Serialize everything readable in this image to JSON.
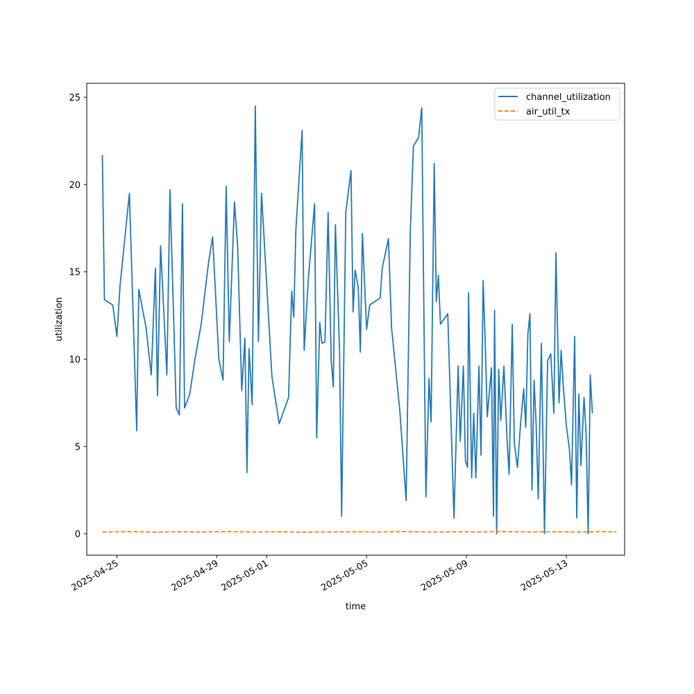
{
  "chart_data": {
    "type": "line",
    "xlabel": "time",
    "ylabel": "utilization",
    "x_type": "date",
    "xlim": [
      "2025-04-23T19:00",
      "2025-05-15T08:00"
    ],
    "ylim": [
      -1.23,
      25.8
    ],
    "grid": false,
    "legend_position": "top-right",
    "x_ticks": [
      "2025-04-25",
      "2025-04-29",
      "2025-05-01",
      "2025-05-05",
      "2025-05-09",
      "2025-05-13"
    ],
    "y_ticks": [
      0,
      5,
      10,
      15,
      20,
      25
    ],
    "series": [
      {
        "name": "channel_utilization",
        "color": "#1f77b4",
        "style": "solid",
        "points": [
          [
            "2025-04-24T10:00",
            21.7
          ],
          [
            "2025-04-24T12:00",
            13.4
          ],
          [
            "2025-04-24T20:00",
            13.1
          ],
          [
            "2025-04-25T00:00",
            11.3
          ],
          [
            "2025-04-25T03:00",
            14.2
          ],
          [
            "2025-04-25T12:00",
            19.5
          ],
          [
            "2025-04-25T19:00",
            5.9
          ],
          [
            "2025-04-25T21:00",
            14.0
          ],
          [
            "2025-04-26T04:00",
            11.8
          ],
          [
            "2025-04-26T09:00",
            9.1
          ],
          [
            "2025-04-26T13:00",
            15.2
          ],
          [
            "2025-04-26T15:00",
            7.9
          ],
          [
            "2025-04-26T18:00",
            16.5
          ],
          [
            "2025-04-27T00:00",
            9.1
          ],
          [
            "2025-04-27T03:00",
            19.7
          ],
          [
            "2025-04-27T09:00",
            7.2
          ],
          [
            "2025-04-27T12:00",
            6.8
          ],
          [
            "2025-04-27T15:00",
            18.9
          ],
          [
            "2025-04-27T17:00",
            7.2
          ],
          [
            "2025-04-27T22:00",
            8.0
          ],
          [
            "2025-04-28T03:00",
            10.0
          ],
          [
            "2025-04-28T09:00",
            12.0
          ],
          [
            "2025-04-28T16:00",
            15.5
          ],
          [
            "2025-04-28T20:00",
            17.0
          ],
          [
            "2025-04-29T02:00",
            10.0
          ],
          [
            "2025-04-29T06:00",
            8.8
          ],
          [
            "2025-04-29T09:00",
            19.9
          ],
          [
            "2025-04-29T12:00",
            11.0
          ],
          [
            "2025-04-29T17:00",
            19.0
          ],
          [
            "2025-04-29T20:00",
            16.5
          ],
          [
            "2025-04-30T00:00",
            8.2
          ],
          [
            "2025-04-30T03:00",
            11.2
          ],
          [
            "2025-04-30T05:00",
            3.5
          ],
          [
            "2025-04-30T07:00",
            10.6
          ],
          [
            "2025-04-30T10:00",
            7.4
          ],
          [
            "2025-04-30T13:00",
            24.5
          ],
          [
            "2025-04-30T16:00",
            11.0
          ],
          [
            "2025-04-30T19:00",
            19.5
          ],
          [
            "2025-05-01T05:00",
            9.0
          ],
          [
            "2025-05-01T12:00",
            6.3
          ],
          [
            "2025-05-01T21:00",
            7.8
          ],
          [
            "2025-05-02T00:00",
            13.9
          ],
          [
            "2025-05-02T02:00",
            12.4
          ],
          [
            "2025-05-02T04:00",
            17.4
          ],
          [
            "2025-05-02T10:00",
            23.1
          ],
          [
            "2025-05-02T12:00",
            10.5
          ],
          [
            "2025-05-02T16:00",
            14.6
          ],
          [
            "2025-05-02T22:00",
            18.9
          ],
          [
            "2025-05-03T00:00",
            5.5
          ],
          [
            "2025-05-03T03:00",
            12.1
          ],
          [
            "2025-05-03T05:00",
            10.9
          ],
          [
            "2025-05-03T08:00",
            11.0
          ],
          [
            "2025-05-03T11:00",
            18.4
          ],
          [
            "2025-05-03T14:00",
            9.9
          ],
          [
            "2025-05-03T16:00",
            8.4
          ],
          [
            "2025-05-03T18:00",
            17.7
          ],
          [
            "2025-05-03T22:00",
            10.5
          ],
          [
            "2025-05-04T00:00",
            1.0
          ],
          [
            "2025-05-04T04:00",
            18.4
          ],
          [
            "2025-05-04T09:00",
            20.8
          ],
          [
            "2025-05-04T11:00",
            12.7
          ],
          [
            "2025-05-04T13:00",
            15.1
          ],
          [
            "2025-05-04T16:00",
            14.1
          ],
          [
            "2025-05-04T18:00",
            10.4
          ],
          [
            "2025-05-04T20:00",
            17.2
          ],
          [
            "2025-05-05T00:00",
            11.7
          ],
          [
            "2025-05-05T03:00",
            13.1
          ],
          [
            "2025-05-05T13:00",
            13.5
          ],
          [
            "2025-05-05T15:00",
            15.2
          ],
          [
            "2025-05-05T21:00",
            16.9
          ],
          [
            "2025-05-06T00:00",
            11.8
          ],
          [
            "2025-05-06T08:00",
            7.0
          ],
          [
            "2025-05-06T14:00",
            1.9
          ],
          [
            "2025-05-06T18:00",
            17.3
          ],
          [
            "2025-05-06T21:00",
            22.2
          ],
          [
            "2025-05-07T02:00",
            22.7
          ],
          [
            "2025-05-07T05:00",
            24.4
          ],
          [
            "2025-05-07T08:00",
            7.4
          ],
          [
            "2025-05-07T09:00",
            2.1
          ],
          [
            "2025-05-07T12:00",
            8.9
          ],
          [
            "2025-05-07T14:00",
            6.4
          ],
          [
            "2025-05-07T17:00",
            21.2
          ],
          [
            "2025-05-07T19:00",
            13.3
          ],
          [
            "2025-05-07T21:00",
            14.8
          ],
          [
            "2025-05-07T23:00",
            12.0
          ],
          [
            "2025-05-08T06:00",
            12.6
          ],
          [
            "2025-05-08T12:00",
            0.9
          ],
          [
            "2025-05-08T16:00",
            9.6
          ],
          [
            "2025-05-08T18:00",
            5.3
          ],
          [
            "2025-05-08T21:00",
            9.6
          ],
          [
            "2025-05-08T23:00",
            4.2
          ],
          [
            "2025-05-09T01:00",
            3.8
          ],
          [
            "2025-05-09T02:00",
            13.8
          ],
          [
            "2025-05-09T05:00",
            3.2
          ],
          [
            "2025-05-09T07:00",
            6.9
          ],
          [
            "2025-05-09T09:00",
            3.2
          ],
          [
            "2025-05-09T12:00",
            9.6
          ],
          [
            "2025-05-09T14:00",
            4.5
          ],
          [
            "2025-05-09T16:00",
            14.5
          ],
          [
            "2025-05-09T18:00",
            11.0
          ],
          [
            "2025-05-09T20:00",
            6.7
          ],
          [
            "2025-05-10T00:00",
            9.5
          ],
          [
            "2025-05-10T02:00",
            1.0
          ],
          [
            "2025-05-10T03:00",
            12.8
          ],
          [
            "2025-05-10T05:00",
            0.0
          ],
          [
            "2025-05-10T07:00",
            9.4
          ],
          [
            "2025-05-10T09:00",
            6.5
          ],
          [
            "2025-05-10T12:00",
            9.6
          ],
          [
            "2025-05-10T15:00",
            5.4
          ],
          [
            "2025-05-10T17:00",
            3.4
          ],
          [
            "2025-05-10T20:00",
            12.0
          ],
          [
            "2025-05-10T22:00",
            5.2
          ],
          [
            "2025-05-11T01:00",
            3.8
          ],
          [
            "2025-05-11T04:00",
            6.3
          ],
          [
            "2025-05-11T07:00",
            8.3
          ],
          [
            "2025-05-11T09:00",
            6.1
          ],
          [
            "2025-05-11T11:00",
            11.4
          ],
          [
            "2025-05-11T13:00",
            12.6
          ],
          [
            "2025-05-11T15:00",
            2.5
          ],
          [
            "2025-05-11T17:00",
            8.8
          ],
          [
            "2025-05-11T19:00",
            6.2
          ],
          [
            "2025-05-11T21:00",
            2.0
          ],
          [
            "2025-05-12T00:00",
            10.9
          ],
          [
            "2025-05-12T03:00",
            0.0
          ],
          [
            "2025-05-12T06:00",
            9.9
          ],
          [
            "2025-05-12T09:00",
            10.3
          ],
          [
            "2025-05-12T12:00",
            6.9
          ],
          [
            "2025-05-12T14:00",
            16.1
          ],
          [
            "2025-05-12T17:00",
            7.5
          ],
          [
            "2025-05-12T19:00",
            10.5
          ],
          [
            "2025-05-12T21:00",
            8.5
          ],
          [
            "2025-05-13T00:00",
            6.2
          ],
          [
            "2025-05-13T03:00",
            4.8
          ],
          [
            "2025-05-13T05:00",
            2.8
          ],
          [
            "2025-05-13T08:00",
            11.3
          ],
          [
            "2025-05-13T10:00",
            0.9
          ],
          [
            "2025-05-13T12:00",
            8.0
          ],
          [
            "2025-05-13T14:00",
            3.9
          ],
          [
            "2025-05-13T17:00",
            7.8
          ],
          [
            "2025-05-13T19:00",
            5.7
          ],
          [
            "2025-05-13T21:00",
            0.0
          ],
          [
            "2025-05-13T23:00",
            9.1
          ],
          [
            "2025-05-14T01:00",
            6.9
          ]
        ]
      },
      {
        "name": "air_util_tx",
        "color": "#ff7f0e",
        "style": "dashed",
        "points": [
          [
            "2025-04-24T10:00",
            0.1
          ],
          [
            "2025-04-25T12:00",
            0.12
          ],
          [
            "2025-04-26T12:00",
            0.09
          ],
          [
            "2025-04-27T12:00",
            0.11
          ],
          [
            "2025-04-28T12:00",
            0.1
          ],
          [
            "2025-04-29T12:00",
            0.12
          ],
          [
            "2025-04-30T12:00",
            0.1
          ],
          [
            "2025-05-01T12:00",
            0.11
          ],
          [
            "2025-05-02T12:00",
            0.09
          ],
          [
            "2025-05-03T12:00",
            0.1
          ],
          [
            "2025-05-04T12:00",
            0.11
          ],
          [
            "2025-05-05T12:00",
            0.1
          ],
          [
            "2025-05-06T12:00",
            0.12
          ],
          [
            "2025-05-07T12:00",
            0.1
          ],
          [
            "2025-05-08T12:00",
            0.11
          ],
          [
            "2025-05-09T12:00",
            0.1
          ],
          [
            "2025-05-10T12:00",
            0.12
          ],
          [
            "2025-05-11T12:00",
            0.1
          ],
          [
            "2025-05-12T12:00",
            0.11
          ],
          [
            "2025-05-13T12:00",
            0.1
          ],
          [
            "2025-05-14T12:00",
            0.12
          ],
          [
            "2025-05-15T00:00",
            0.1
          ]
        ]
      }
    ]
  }
}
